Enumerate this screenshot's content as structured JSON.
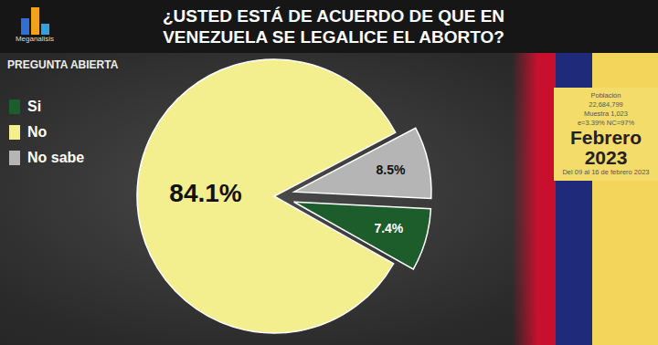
{
  "chart_data": {
    "type": "pie",
    "title": "¿USTED ESTÁ DE ACUERDO DE QUE EN VENEZUELA SE LEGALICE EL ABORTO?",
    "subtitle": "PREGUNTA ABIERTA",
    "categories": [
      "Si",
      "No",
      "No sabe"
    ],
    "values": [
      7.4,
      84.1,
      8.5
    ],
    "value_labels": [
      "7.4%",
      "84.1%",
      "8.5%"
    ],
    "colors": [
      "#1d5c2b",
      "#f3ee8e",
      "#b5b5b5"
    ],
    "data_labels": true,
    "legend": "top-left",
    "annotations": [
      "Meganalisis",
      "Población",
      "22,684,799",
      "Muestra 1,023",
      "e=3.39% NC=97%",
      "Febrero",
      "2023",
      "Del 09 al 16 de febrero 2023"
    ]
  }
}
